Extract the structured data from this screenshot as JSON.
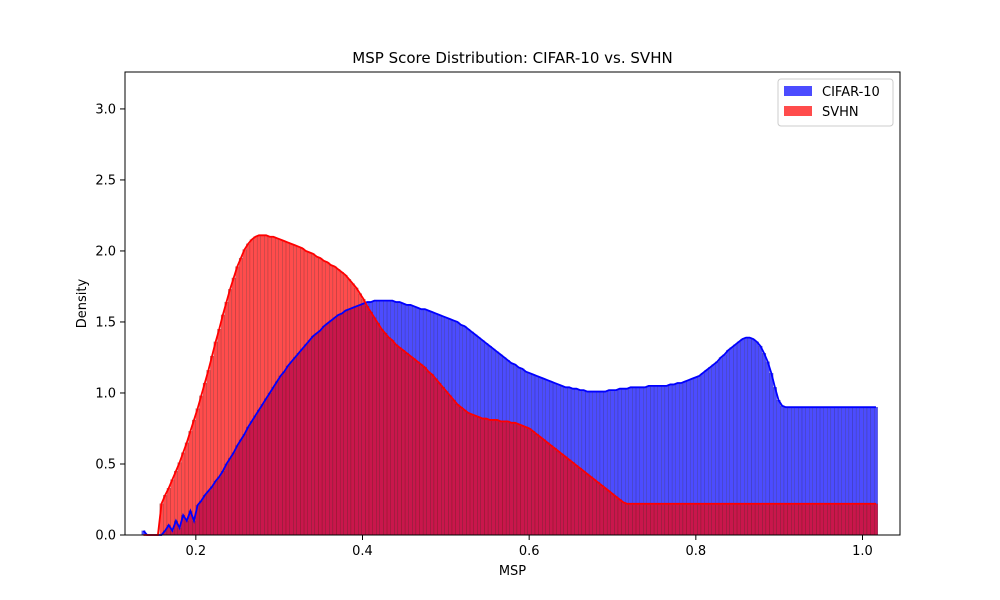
{
  "chart_data": {
    "type": "bar",
    "title": "MSP Score Distribution: CIFAR-10 vs. SVHN",
    "xlabel": "MSP",
    "ylabel": "Density",
    "xlim": [
      0.115,
      1.045
    ],
    "ylim": [
      0,
      3.26
    ],
    "xticks": [
      0.2,
      0.4,
      0.6,
      0.8,
      1.0
    ],
    "xtick_labels": [
      "0.2",
      "0.4",
      "0.6",
      "0.8",
      "1.0"
    ],
    "yticks": [
      0.0,
      0.5,
      1.0,
      1.5,
      2.0,
      2.5,
      3.0
    ],
    "ytick_labels": [
      "0.0",
      "0.5",
      "1.0",
      "1.5",
      "2.0",
      "2.5",
      "3.0"
    ],
    "grid": false,
    "legend_position": "top-right",
    "bins": {
      "start": 0.135,
      "width": 0.00433,
      "count": 200
    },
    "series": [
      {
        "name": "CIFAR-10",
        "color": "#0000ff",
        "kde_color": "#0000ff",
        "values": [
          0.03,
          0.0,
          0.0,
          0.0,
          0.0,
          0.0,
          0.03,
          0.07,
          0.03,
          0.1,
          0.05,
          0.14,
          0.1,
          0.17,
          0.1,
          0.21,
          0.24,
          0.28,
          0.31,
          0.34,
          0.38,
          0.41,
          0.45,
          0.5,
          0.54,
          0.58,
          0.63,
          0.67,
          0.71,
          0.76,
          0.8,
          0.84,
          0.88,
          0.92,
          0.96,
          1.0,
          1.04,
          1.08,
          1.12,
          1.15,
          1.19,
          1.22,
          1.25,
          1.28,
          1.31,
          1.34,
          1.37,
          1.4,
          1.42,
          1.44,
          1.47,
          1.49,
          1.51,
          1.53,
          1.55,
          1.56,
          1.58,
          1.59,
          1.6,
          1.61,
          1.62,
          1.63,
          1.64,
          1.64,
          1.65,
          1.65,
          1.65,
          1.65,
          1.65,
          1.65,
          1.64,
          1.64,
          1.63,
          1.62,
          1.62,
          1.61,
          1.6,
          1.59,
          1.59,
          1.58,
          1.57,
          1.56,
          1.55,
          1.54,
          1.53,
          1.52,
          1.51,
          1.5,
          1.48,
          1.47,
          1.45,
          1.43,
          1.41,
          1.39,
          1.37,
          1.35,
          1.33,
          1.31,
          1.29,
          1.27,
          1.25,
          1.23,
          1.21,
          1.2,
          1.18,
          1.17,
          1.15,
          1.14,
          1.13,
          1.12,
          1.11,
          1.1,
          1.09,
          1.08,
          1.07,
          1.06,
          1.05,
          1.04,
          1.04,
          1.03,
          1.03,
          1.02,
          1.02,
          1.01,
          1.01,
          1.01,
          1.01,
          1.01,
          1.01,
          1.02,
          1.02,
          1.02,
          1.03,
          1.03,
          1.03,
          1.04,
          1.04,
          1.04,
          1.04,
          1.04,
          1.05,
          1.05,
          1.05,
          1.05,
          1.05,
          1.05,
          1.06,
          1.06,
          1.07,
          1.07,
          1.08,
          1.09,
          1.1,
          1.11,
          1.12,
          1.14,
          1.16,
          1.18,
          1.2,
          1.22,
          1.25,
          1.27,
          1.3,
          1.32,
          1.34,
          1.36,
          1.38,
          1.39,
          1.39,
          1.38,
          1.36,
          1.33,
          1.28,
          1.22,
          1.14,
          1.04,
          0.95,
          0.91,
          0.9,
          0.9,
          0.9,
          0.9,
          0.9,
          0.9,
          0.9,
          0.9,
          0.9,
          0.9,
          0.9,
          0.9,
          0.9,
          0.9,
          0.9,
          0.9,
          0.9,
          0.9,
          0.9,
          0.9,
          0.9,
          0.9,
          0.9,
          0.9,
          0.9,
          0.9
        ]
      },
      {
        "name": "SVHN",
        "color": "#ff0000",
        "kde_color": "#ff0000",
        "values": [
          0.0,
          0.0,
          0.0,
          0.0,
          0.0,
          0.22,
          0.28,
          0.33,
          0.39,
          0.45,
          0.51,
          0.58,
          0.65,
          0.73,
          0.81,
          0.89,
          0.98,
          1.07,
          1.16,
          1.26,
          1.36,
          1.45,
          1.55,
          1.64,
          1.73,
          1.81,
          1.89,
          1.95,
          2.01,
          2.05,
          2.08,
          2.1,
          2.11,
          2.11,
          2.11,
          2.1,
          2.1,
          2.09,
          2.08,
          2.07,
          2.06,
          2.05,
          2.04,
          2.03,
          2.02,
          2.0,
          1.99,
          1.98,
          1.96,
          1.95,
          1.93,
          1.92,
          1.9,
          1.89,
          1.87,
          1.85,
          1.83,
          1.8,
          1.77,
          1.74,
          1.7,
          1.66,
          1.61,
          1.57,
          1.53,
          1.49,
          1.45,
          1.42,
          1.39,
          1.37,
          1.34,
          1.32,
          1.3,
          1.28,
          1.26,
          1.24,
          1.22,
          1.2,
          1.18,
          1.15,
          1.13,
          1.1,
          1.07,
          1.04,
          1.01,
          0.98,
          0.95,
          0.92,
          0.9,
          0.88,
          0.86,
          0.85,
          0.84,
          0.83,
          0.82,
          0.82,
          0.81,
          0.81,
          0.81,
          0.8,
          0.8,
          0.8,
          0.79,
          0.79,
          0.78,
          0.77,
          0.76,
          0.75,
          0.73,
          0.71,
          0.69,
          0.67,
          0.65,
          0.63,
          0.61,
          0.59,
          0.57,
          0.55,
          0.53,
          0.51,
          0.49,
          0.47,
          0.45,
          0.43,
          0.41,
          0.39,
          0.37,
          0.35,
          0.33,
          0.31,
          0.29,
          0.27,
          0.25,
          0.23,
          0.22,
          0.22,
          0.22,
          0.22,
          0.22,
          0.22,
          0.22,
          0.22,
          0.22,
          0.22,
          0.22,
          0.22,
          0.22,
          0.22,
          0.22,
          0.22,
          0.22,
          0.22,
          0.22,
          0.22,
          0.22,
          0.22,
          0.22,
          0.22,
          0.22,
          0.22,
          0.22,
          0.22,
          0.22,
          0.22,
          0.22,
          0.22,
          0.22,
          0.22,
          0.22,
          0.22,
          0.22,
          0.22,
          0.22,
          0.22,
          0.22,
          0.22,
          0.22,
          0.22,
          0.22,
          0.22,
          0.22,
          0.22,
          0.22,
          0.22,
          0.22,
          0.22,
          0.22,
          0.22,
          0.22,
          0.22,
          0.22,
          0.22,
          0.22,
          0.22,
          0.22,
          0.22,
          0.22,
          0.22,
          0.22,
          0.22,
          0.22,
          0.22,
          0.22,
          0.22
        ]
      }
    ]
  }
}
